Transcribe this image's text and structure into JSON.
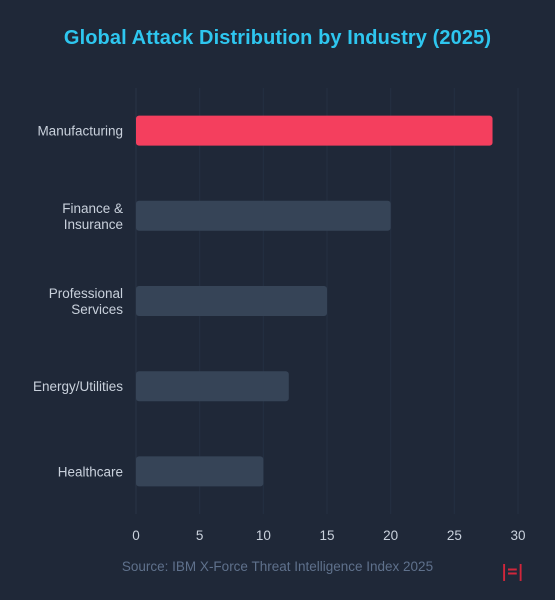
{
  "chart_data": {
    "type": "bar",
    "orientation": "horizontal",
    "title": "Global Attack Distribution by Industry (2025)",
    "categories": [
      [
        "Manufacturing"
      ],
      [
        "Finance &",
        "Insurance"
      ],
      [
        "Professional",
        "Services"
      ],
      [
        "Energy/Utilities"
      ],
      [
        "Healthcare"
      ]
    ],
    "values": [
      28,
      20,
      15,
      12,
      10
    ],
    "xlim": [
      0,
      30
    ],
    "xticks": [
      0,
      5,
      10,
      15,
      20,
      25,
      30
    ],
    "grid": true,
    "highlight_color": "#f43f5e",
    "bar_color": "#364457"
  },
  "source": "Source: IBM X-Force Threat Intelligence Index 2025",
  "brand_mark": "|=|"
}
